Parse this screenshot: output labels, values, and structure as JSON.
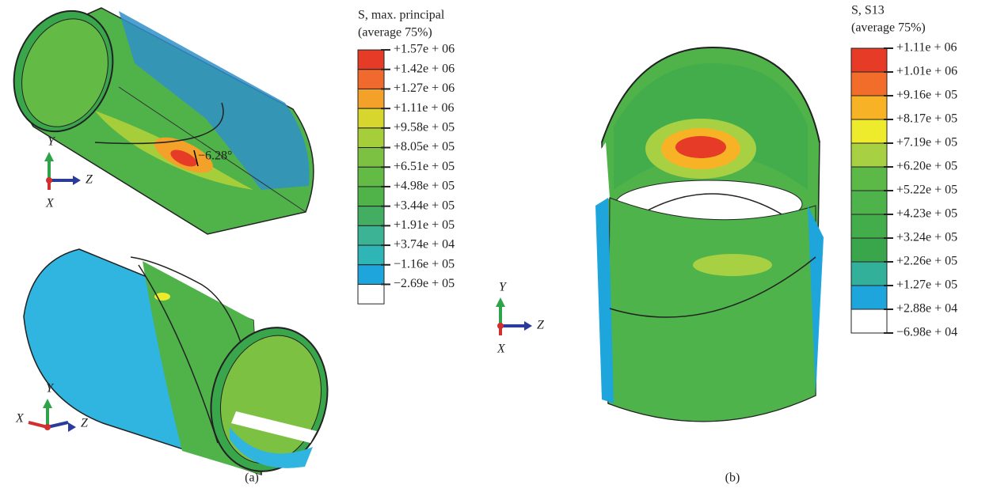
{
  "figure": {
    "panels": [
      {
        "caption": "(a)",
        "annotation": "−6.28°",
        "legend": {
          "title": "S, max. principal",
          "subtitle": "(average 75%)",
          "labels": [
            "+1.57e + 06",
            "+1.42e + 06",
            "+1.27e + 06",
            "+1.11e + 06",
            "+9.58e + 05",
            "+8.05e + 05",
            "+6.51e + 05",
            "+4.98e + 05",
            "+3.44e + 05",
            "+1.91e + 05",
            "+3.74e + 04",
            "−1.16e + 05",
            "−2.69e + 05"
          ],
          "colors": [
            "#e63b27",
            "#ef6a2c",
            "#f4a12a",
            "#d6d62e",
            "#a6cd3a",
            "#7dc142",
            "#63ba45",
            "#4fb34a",
            "#43ad62",
            "#3bb394",
            "#2fb5b6",
            "#1ea6dc",
            "#ffffff"
          ]
        },
        "triads": [
          {
            "y": "Y",
            "z": "Z",
            "x": "X"
          },
          {
            "y": "Y",
            "x": "X",
            "z": "Z"
          }
        ]
      },
      {
        "caption": "(b)",
        "legend": {
          "title": "S, S13",
          "subtitle": "(average 75%)",
          "labels": [
            "+1.11e + 06",
            "+1.01e + 06",
            "+9.16e + 05",
            "+8.17e + 05",
            "+7.19e + 05",
            "+6.20e + 05",
            "+5.22e + 05",
            "+4.23e + 05",
            "+3.24e + 05",
            "+2.26e + 05",
            "+1.27e + 05",
            "+2.88e + 04",
            "−6.98e + 04"
          ],
          "colors": [
            "#e63b27",
            "#f26d2a",
            "#f8b226",
            "#eeea2c",
            "#a8d043",
            "#5cb947",
            "#4db34a",
            "#43ad4b",
            "#3aa64c",
            "#33b099",
            "#1ea6dc",
            "#ffffff"
          ]
        },
        "triads": [
          {
            "y": "Y",
            "z": "Z",
            "x": "X"
          }
        ]
      }
    ]
  }
}
